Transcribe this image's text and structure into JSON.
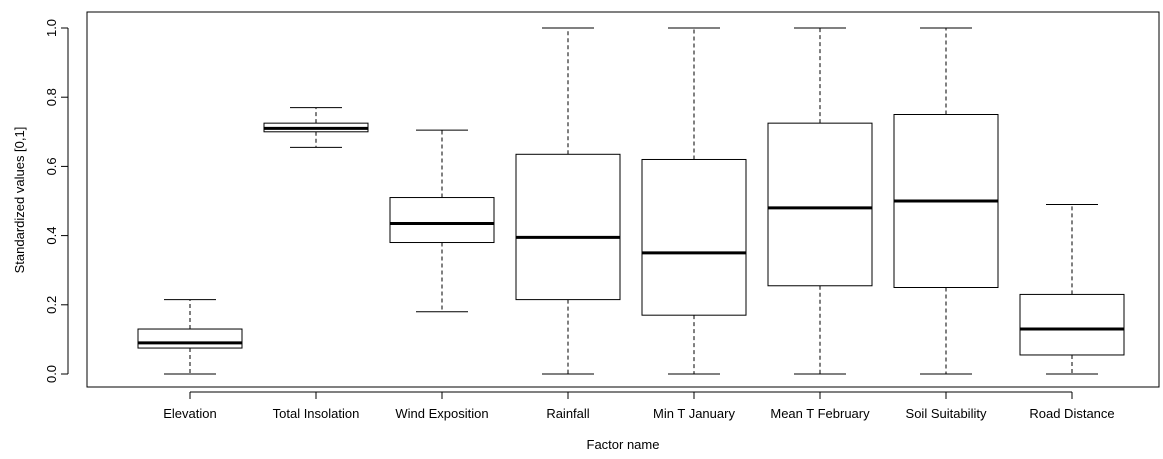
{
  "chart_data": {
    "type": "box",
    "xlabel": "Factor name",
    "ylabel": "Standardized values [0,1]",
    "ylim": [
      0.0,
      1.0
    ],
    "y_ticks": [
      "0.0",
      "0.2",
      "0.4",
      "0.6",
      "0.8",
      "1.0"
    ],
    "grid": false,
    "categories": [
      "Elevation",
      "Total Insolation",
      "Wind Exposition",
      "Rainfall",
      "Min T January",
      "Mean T February",
      "Soil Suitability",
      "Road Distance"
    ],
    "boxes": [
      {
        "name": "Elevation",
        "whisker_low": 0.0,
        "q1": 0.075,
        "median": 0.09,
        "q3": 0.13,
        "whisker_high": 0.215
      },
      {
        "name": "Total Insolation",
        "whisker_low": 0.655,
        "q1": 0.7,
        "median": 0.71,
        "q3": 0.725,
        "whisker_high": 0.77
      },
      {
        "name": "Wind Exposition",
        "whisker_low": 0.18,
        "q1": 0.38,
        "median": 0.435,
        "q3": 0.51,
        "whisker_high": 0.705
      },
      {
        "name": "Rainfall",
        "whisker_low": 0.0,
        "q1": 0.215,
        "median": 0.395,
        "q3": 0.635,
        "whisker_high": 1.0
      },
      {
        "name": "Min T January",
        "whisker_low": 0.0,
        "q1": 0.17,
        "median": 0.35,
        "q3": 0.62,
        "whisker_high": 1.0
      },
      {
        "name": "Mean T February",
        "whisker_low": 0.0,
        "q1": 0.255,
        "median": 0.48,
        "q3": 0.725,
        "whisker_high": 1.0
      },
      {
        "name": "Soil Suitability",
        "whisker_low": 0.0,
        "q1": 0.25,
        "median": 0.5,
        "q3": 0.75,
        "whisker_high": 1.0
      },
      {
        "name": "Road Distance",
        "whisker_low": 0.0,
        "q1": 0.055,
        "median": 0.13,
        "q3": 0.23,
        "whisker_high": 0.49
      }
    ]
  }
}
